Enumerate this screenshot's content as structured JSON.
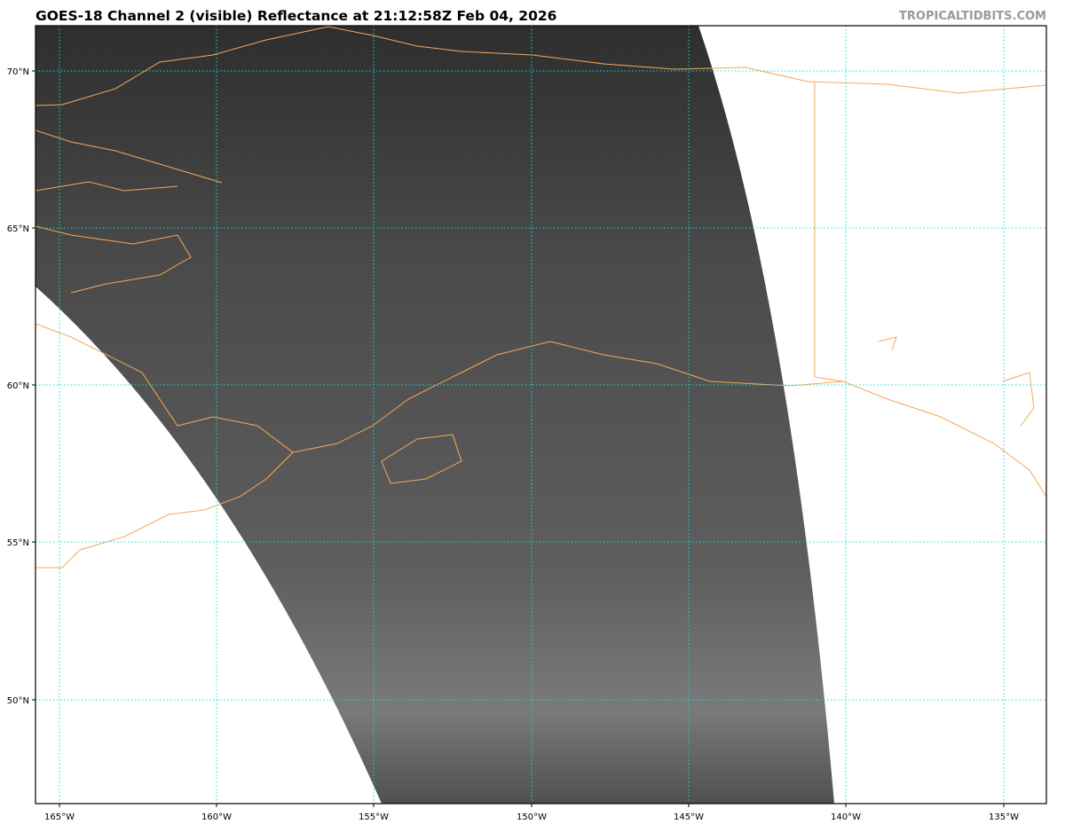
{
  "title": "GOES-18 Channel 2 (visible) Reflectance at 21:12:58Z Feb 04, 2026",
  "brand": "TROPICALTIDBITS.COM",
  "map": {
    "projection": "satellite swath over Gulf of Alaska",
    "gridline_color": "#00e5e5",
    "coastline_color": "#f5a95a",
    "lon_labels": [
      "165°W",
      "160°W",
      "155°W",
      "150°W",
      "145°W",
      "140°W",
      "135°W"
    ],
    "lat_labels": [
      "70°N",
      "65°N",
      "60°N",
      "55°N",
      "50°N"
    ]
  }
}
